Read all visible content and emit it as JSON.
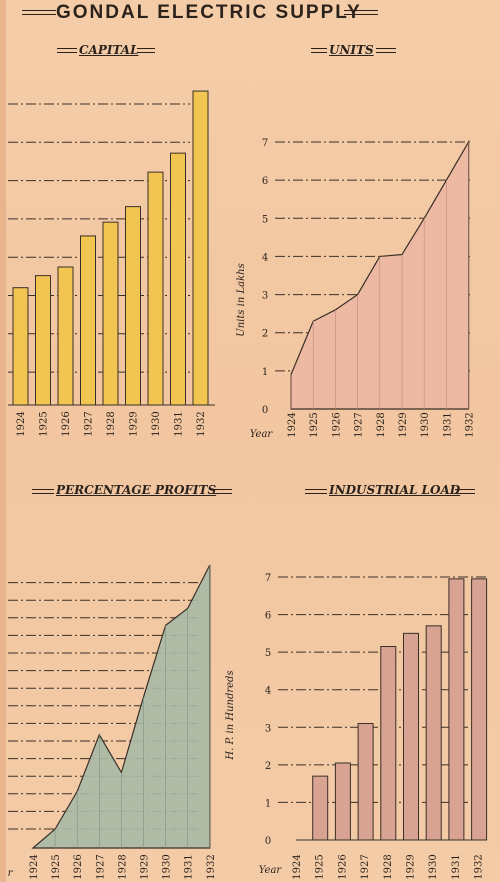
{
  "title": "GONDAL ELECTRIC SUPPLY",
  "colors": {
    "capital": "#f2c552",
    "units": "#eeb9a2",
    "profits": "#a8b9a6",
    "load": "#d9a393"
  },
  "chart_data": [
    {
      "type": "bar",
      "title": "CAPITAL",
      "categories": [
        "1924",
        "1925",
        "1926",
        "1927",
        "1928",
        "1929",
        "1930",
        "1931",
        "1932"
      ],
      "values": [
        3.4,
        3.75,
        4.0,
        4.9,
        5.3,
        5.75,
        6.75,
        7.3,
        9.1
      ],
      "ylim": [
        0,
        10
      ],
      "grid": true
    },
    {
      "type": "area",
      "title": "UNITS",
      "xlabel": "Year",
      "ylabel": "Units in Lakhs",
      "categories": [
        "1924",
        "1925",
        "1926",
        "1927",
        "1928",
        "1929",
        "1930",
        "1931",
        "1932"
      ],
      "values": [
        0.9,
        2.3,
        2.6,
        3.0,
        4.0,
        4.05,
        5.0,
        6.0,
        7.0
      ],
      "y_ticks": [
        "0",
        "1",
        "2",
        "3",
        "4",
        "5",
        "6",
        "7"
      ],
      "ylim": [
        0,
        7
      ],
      "grid": true
    },
    {
      "type": "area",
      "title": "PERCENTAGE PROFITS",
      "xlabel": "r",
      "categories": [
        "1924",
        "1925",
        "1926",
        "1927",
        "1928",
        "1929",
        "1930",
        "1931",
        "1932"
      ],
      "values": [
        0.0,
        1.0,
        3.0,
        6.0,
        4.0,
        8.0,
        11.8,
        12.7,
        15.0
      ],
      "ylim": [
        0,
        15
      ],
      "grid": true
    },
    {
      "type": "bar",
      "title": "INDUSTRIAL LOAD",
      "xlabel": "Year",
      "ylabel": "H. P. in Hundreds",
      "categories": [
        "1924",
        "1925",
        "1926",
        "1927",
        "1928",
        "1929",
        "1930",
        "1931",
        "1932"
      ],
      "values": [
        0,
        1.7,
        2.05,
        3.1,
        5.15,
        5.5,
        5.7,
        6.95,
        6.95
      ],
      "y_ticks": [
        "0",
        "1",
        "2",
        "3",
        "4",
        "5",
        "6",
        "7"
      ],
      "ylim": [
        0,
        7
      ],
      "grid": true
    }
  ]
}
